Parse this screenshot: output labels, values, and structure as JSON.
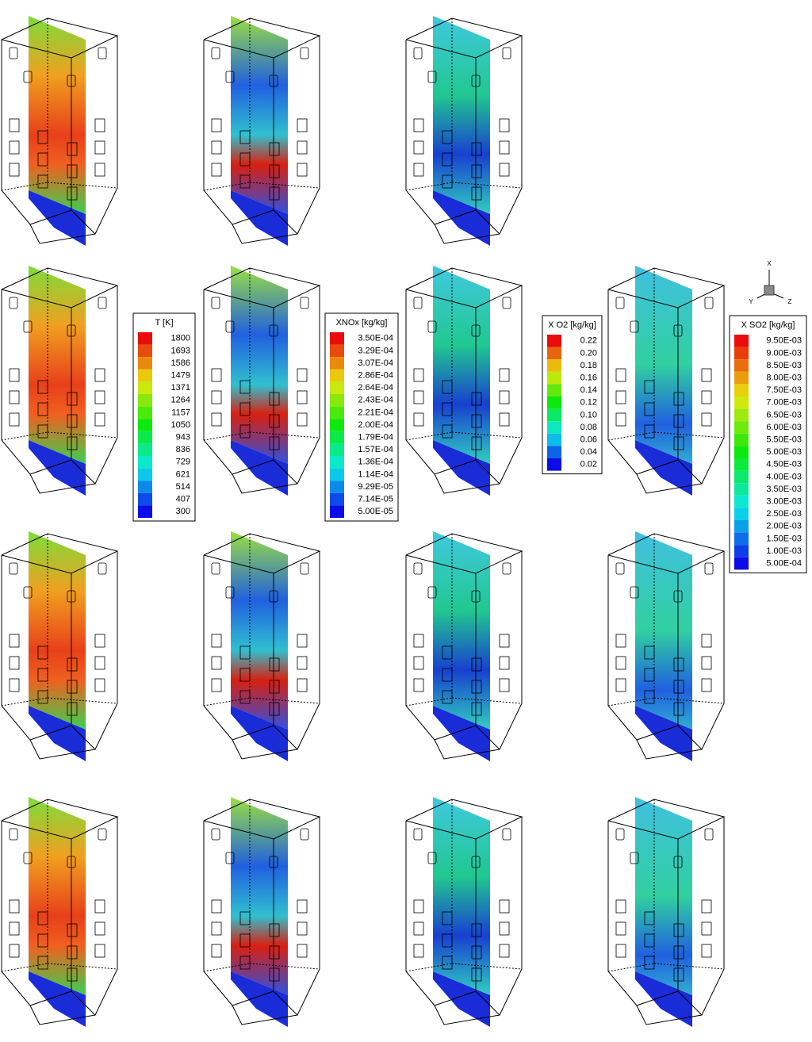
{
  "legends": [
    {
      "title": "T [K]",
      "levels": [
        "1800",
        "1693",
        "1586",
        "1479",
        "1371",
        "1264",
        "1157",
        "1050",
        "943",
        "836",
        "729",
        "621",
        "514",
        "407",
        "300"
      ]
    },
    {
      "title": "XNOx [kg/kg]",
      "levels": [
        "3.50E-04",
        "3.29E-04",
        "3.07E-04",
        "2.86E-04",
        "2.64E-04",
        "2.43E-04",
        "2.21E-04",
        "2.00E-04",
        "1.79E-04",
        "1.57E-04",
        "1.36E-04",
        "1.14E-04",
        "9.29E-05",
        "7.14E-05",
        "5.00E-05"
      ]
    },
    {
      "title": "X O2 [kg/kg]",
      "levels": [
        "0.22",
        "0.20",
        "0.18",
        "0.16",
        "0.14",
        "0.12",
        "0.10",
        "0.08",
        "0.06",
        "0.04",
        "0.02"
      ]
    },
    {
      "title": "X SO2 [kg/kg]",
      "levels": [
        "9.50E-03",
        "9.00E-03",
        "8.50E-03",
        "8.00E-03",
        "7.50E-03",
        "7.00E-03",
        "6.50E-03",
        "6.00E-03",
        "5.50E-03",
        "5.00E-03",
        "4.50E-03",
        "4.00E-03",
        "3.50E-03",
        "3.00E-03",
        "2.50E-03",
        "2.00E-03",
        "1.50E-03",
        "1.00E-03",
        "5.00E-04"
      ]
    }
  ],
  "axes_triad": {
    "x": "X",
    "y": "Y",
    "z": "Z"
  }
}
